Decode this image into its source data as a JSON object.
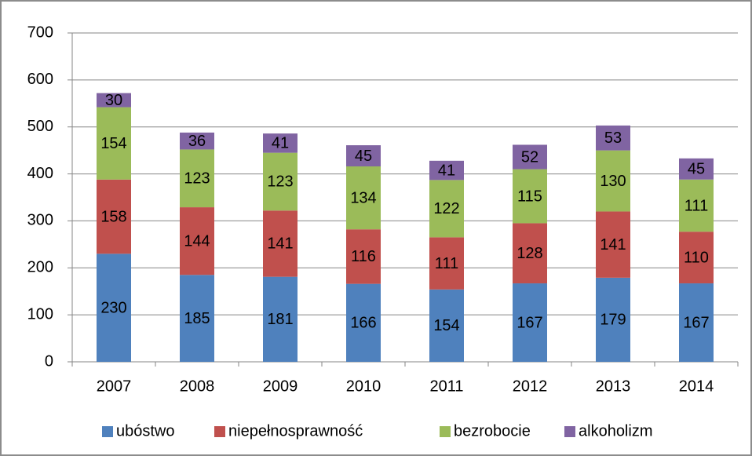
{
  "chart_data": {
    "type": "bar",
    "stacked": true,
    "data_labels": true,
    "grid": true,
    "legend": "bottom",
    "categories": [
      "2007",
      "2008",
      "2009",
      "2010",
      "2011",
      "2012",
      "2013",
      "2014"
    ],
    "series": [
      {
        "name": "ubóstwo",
        "color": "#4f81bd",
        "values": [
          230,
          185,
          181,
          166,
          154,
          167,
          179,
          167
        ]
      },
      {
        "name": "niepełnosprawność",
        "color": "#c0504d",
        "values": [
          158,
          144,
          141,
          116,
          111,
          128,
          141,
          110
        ]
      },
      {
        "name": "bezrobocie",
        "color": "#9bbb59",
        "values": [
          154,
          123,
          123,
          134,
          122,
          115,
          130,
          111
        ]
      },
      {
        "name": "alkoholizm",
        "color": "#8064a2",
        "values": [
          30,
          36,
          41,
          45,
          41,
          52,
          53,
          45
        ]
      }
    ],
    "ylim": [
      0,
      700
    ],
    "yticks": [
      0,
      100,
      200,
      300,
      400,
      500,
      600,
      700
    ]
  }
}
